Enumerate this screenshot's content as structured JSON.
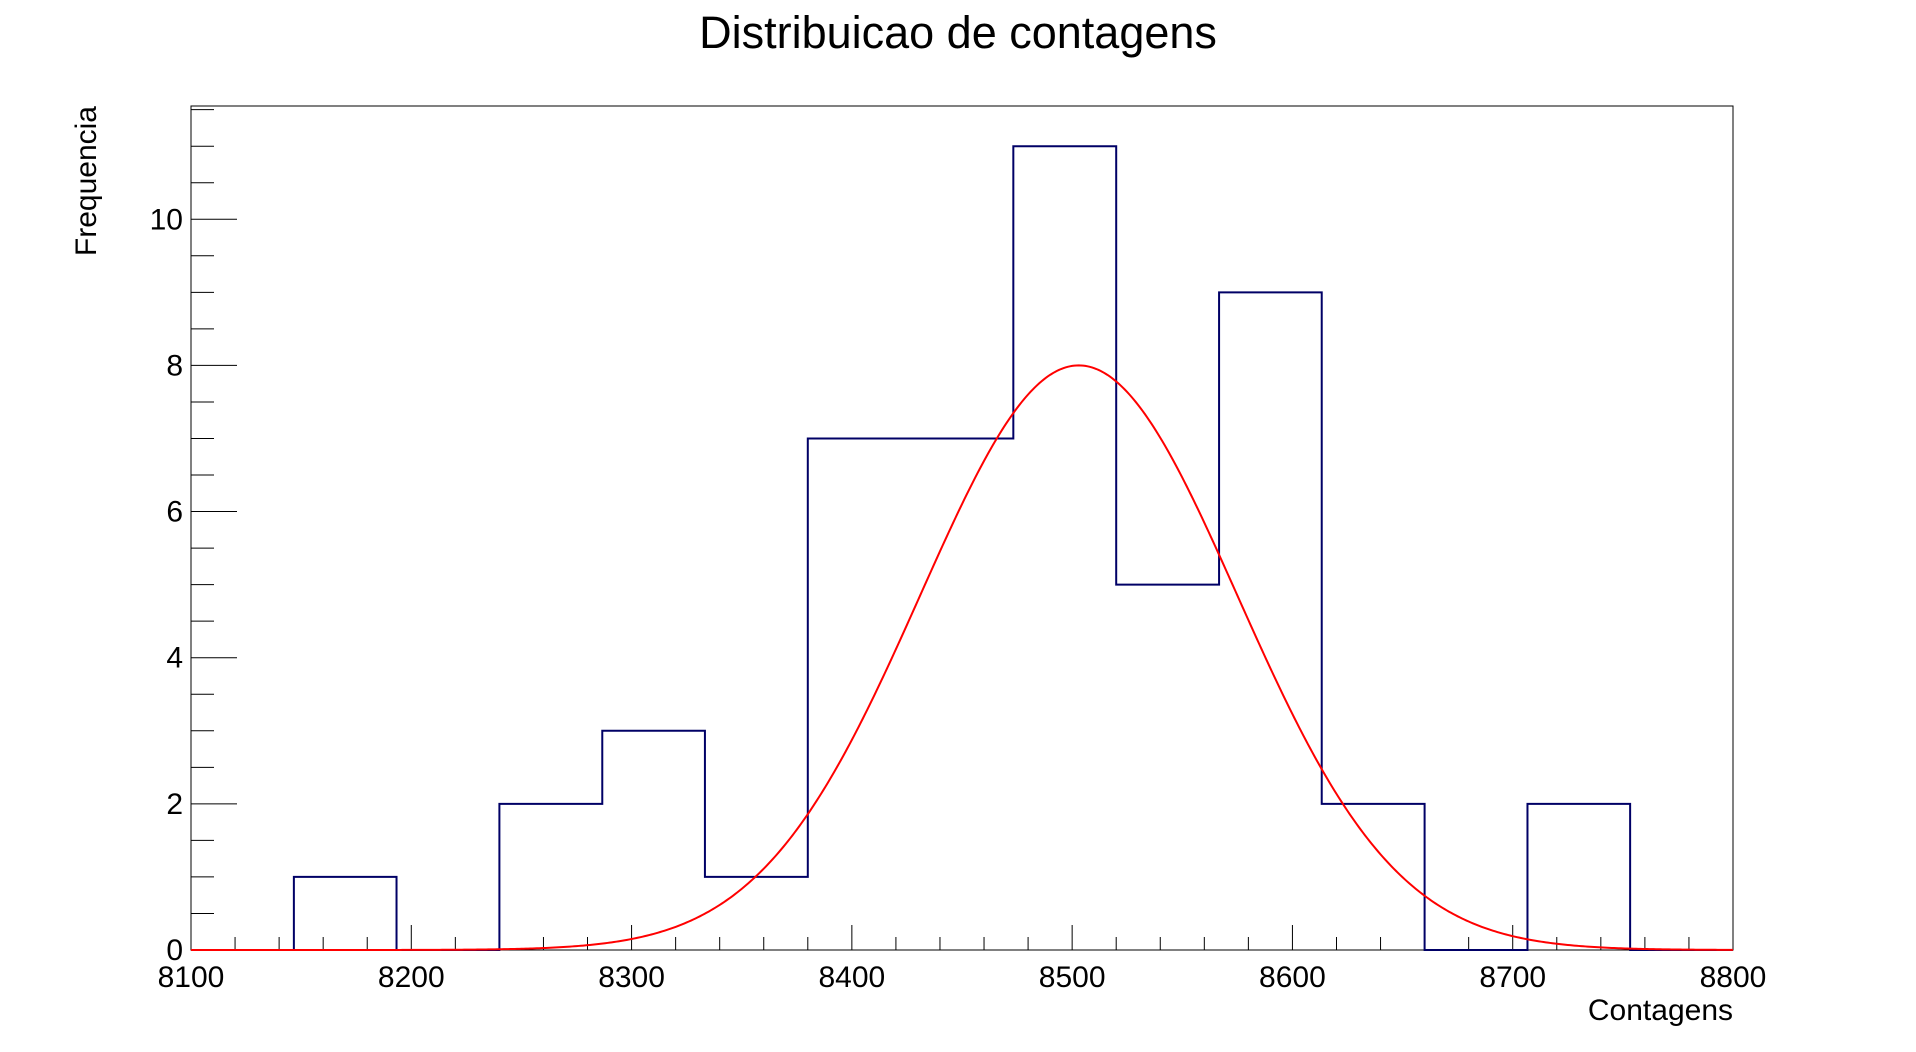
{
  "chart_data": {
    "type": "bar",
    "title": "Distribuicao de contagens",
    "xlabel": "Contagens",
    "ylabel": "Frequencia",
    "xlim": [
      8100,
      8800
    ],
    "ylim": [
      0,
      11.55
    ],
    "x_ticks": [
      8100,
      8200,
      8300,
      8400,
      8500,
      8600,
      8700,
      8800
    ],
    "y_ticks": [
      0,
      2,
      4,
      6,
      8,
      10
    ],
    "bin_edges": [
      8100,
      8146.7,
      8193.3,
      8240,
      8286.7,
      8333.3,
      8380,
      8426.7,
      8473.3,
      8520,
      8566.7,
      8613.3,
      8660,
      8706.7,
      8753.3,
      8800
    ],
    "values": [
      0,
      1,
      0,
      2,
      3,
      1,
      7,
      7,
      11,
      5,
      9,
      2,
      0,
      2,
      0
    ],
    "fit": {
      "type": "gaussian",
      "amplitude": 8.0,
      "mean": 8503,
      "sigma": 72
    },
    "grid": false,
    "colors": {
      "histogram": "#000066",
      "fit": "#ff0000",
      "frame": "#000000"
    }
  }
}
